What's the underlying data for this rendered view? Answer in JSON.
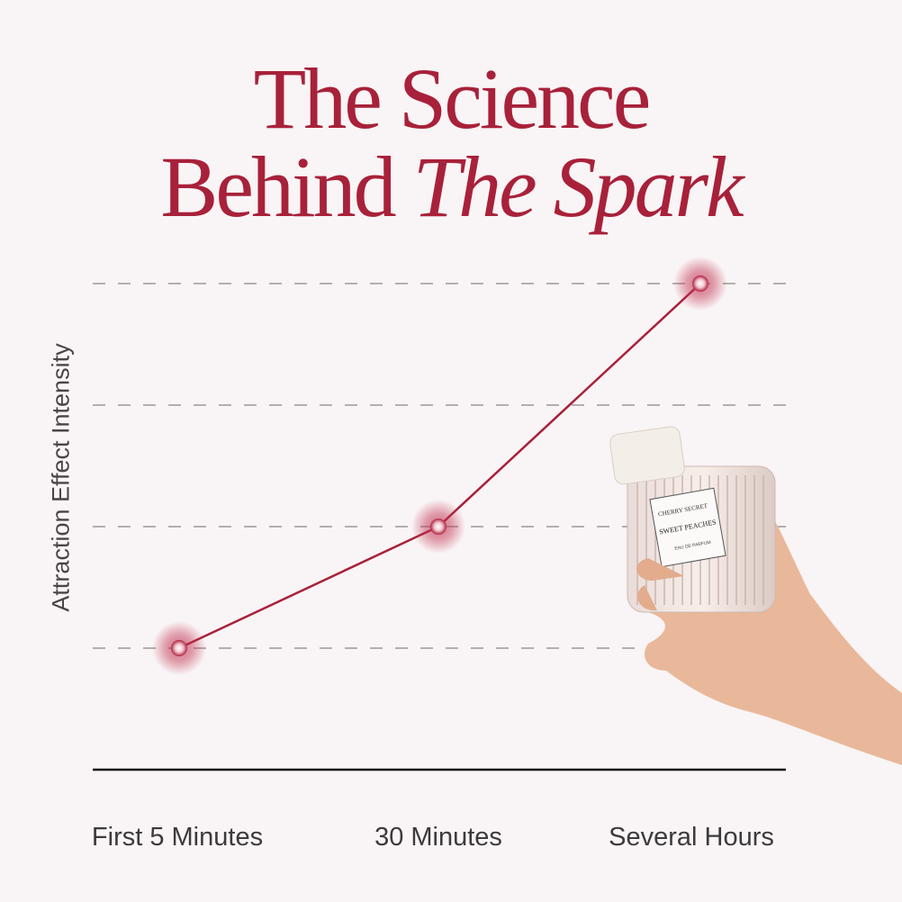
{
  "title": {
    "line1": "The Science",
    "line2_plain": "Behind ",
    "line2_italic": "The Spark"
  },
  "colors": {
    "accent": "#a8213a",
    "background": "#f9f4f5",
    "grid": "#8a8587",
    "axis": "#111111"
  },
  "product": {
    "brand": "CHERRY SECRET",
    "name": "SWEET PEACHES",
    "type": "EAU DE PARFUM"
  },
  "chart_data": {
    "type": "line",
    "title": "The Science Behind The Spark",
    "xlabel": "",
    "ylabel": "Attraction Effect Intensity",
    "categories": [
      "First 5 Minutes",
      "30 Minutes",
      "Several Hours"
    ],
    "values": [
      1,
      2,
      4
    ],
    "ylim": [
      0,
      4
    ],
    "grid": "dashed horizontal",
    "y_ticks_labeled": false
  }
}
